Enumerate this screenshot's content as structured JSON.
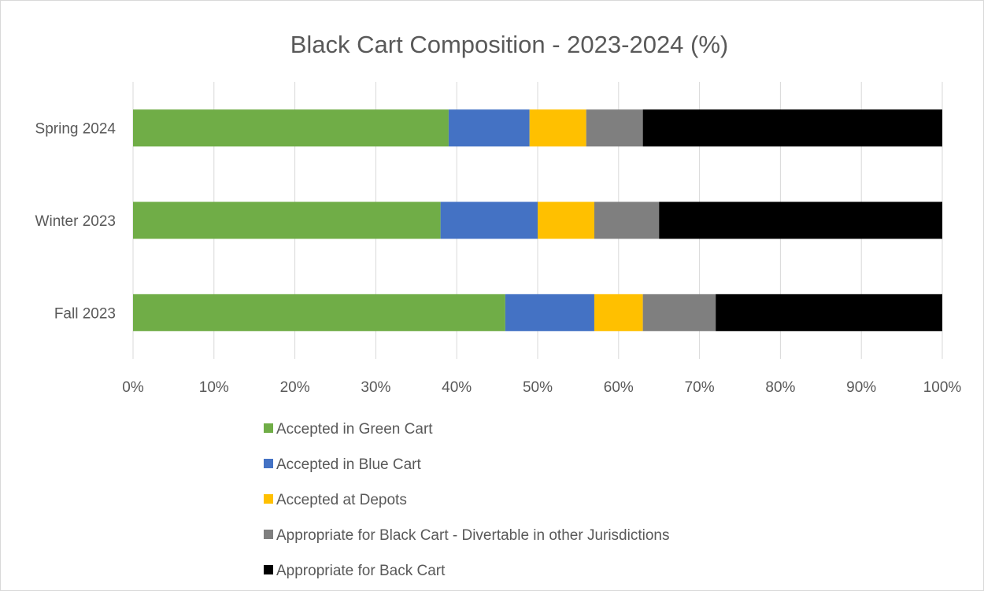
{
  "chart_data": {
    "type": "bar",
    "orientation": "horizontal",
    "stacked": true,
    "percent_stacked": true,
    "title": "Black Cart Composition - 2023-2024 (%)",
    "xlabel": "",
    "ylabel": "",
    "xlim": [
      0,
      100
    ],
    "x_ticks": [
      "0%",
      "10%",
      "20%",
      "30%",
      "40%",
      "50%",
      "60%",
      "70%",
      "80%",
      "90%",
      "100%"
    ],
    "grid": "vertical",
    "legend_position": "bottom",
    "categories": [
      "Fall 2023",
      "Winter 2023",
      "Spring 2024"
    ],
    "series": [
      {
        "name": "Accepted in Green Cart",
        "color": "#70ad47",
        "values": [
          46,
          38,
          39
        ]
      },
      {
        "name": "Accepted in Blue Cart",
        "color": "#4472c4",
        "values": [
          11,
          12,
          10
        ]
      },
      {
        "name": "Accepted at Depots",
        "color": "#ffc000",
        "values": [
          6,
          7,
          7
        ]
      },
      {
        "name": "Appropriate for Black Cart - Divertable in other Jurisdictions",
        "color": "#7f7f7f",
        "values": [
          9,
          8,
          7
        ]
      },
      {
        "name": "Appropriate for Back Cart",
        "color": "#000000",
        "values": [
          28,
          35,
          37
        ]
      }
    ]
  }
}
